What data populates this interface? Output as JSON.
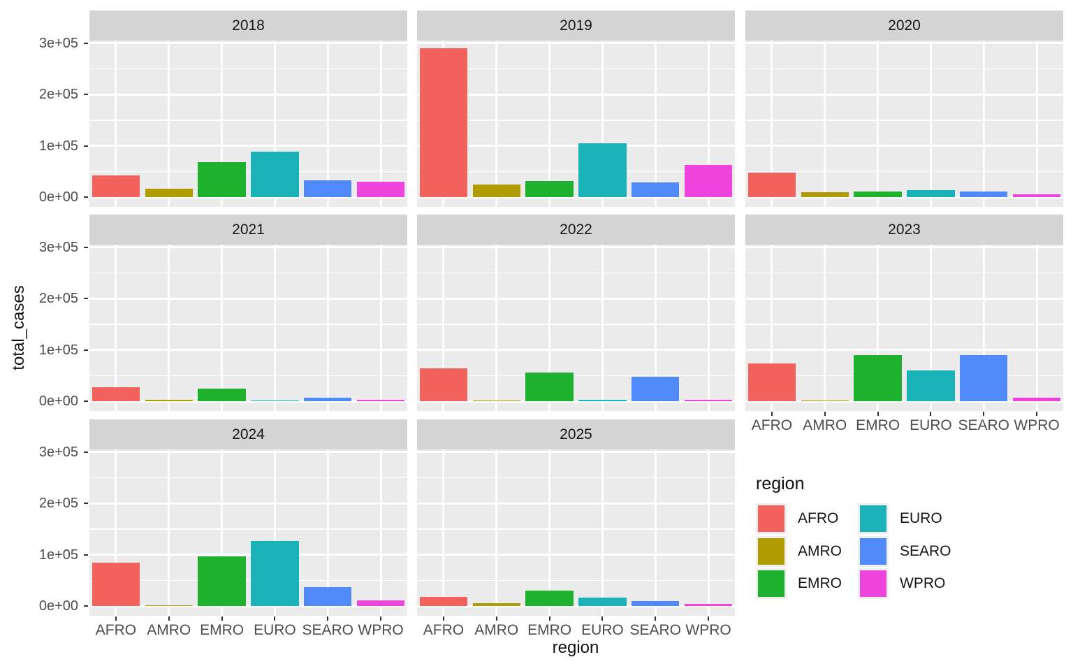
{
  "figure": {
    "y_axis_title": "total_cases",
    "x_axis_title": "region",
    "y_tick_labels": [
      "0e+00",
      "1e+05",
      "2e+05",
      "3e+05"
    ]
  },
  "legend": {
    "title": "region",
    "entries": [
      {
        "label": "AFRO",
        "color": "#f4625d"
      },
      {
        "label": "AMRO",
        "color": "#b09c00"
      },
      {
        "label": "EMRO",
        "color": "#1fb22e"
      },
      {
        "label": "EURO",
        "color": "#18b2b8"
      },
      {
        "label": "SEARO",
        "color": "#4f8af8"
      },
      {
        "label": "WPRO",
        "color": "#ee44dd"
      }
    ]
  },
  "chart_data": {
    "type": "bar",
    "title": "",
    "xlabel": "region",
    "ylabel": "total_cases",
    "facet_variable": "year",
    "categories": [
      "AFRO",
      "AMRO",
      "EMRO",
      "EURO",
      "SEARO",
      "WPRO"
    ],
    "colors": [
      "#f4625d",
      "#b09c00",
      "#1fb22e",
      "#18b2b8",
      "#4f8af8",
      "#ee44dd"
    ],
    "ylim": [
      0,
      305000
    ],
    "y_ticks": [
      0,
      100000,
      200000,
      300000
    ],
    "y_minor_ticks": [
      50000,
      150000,
      250000
    ],
    "grid": true,
    "legend_position": "bottom-right-facet-slot",
    "facets": [
      {
        "year": "2018",
        "values": [
          42000,
          17000,
          68000,
          89000,
          32000,
          30000
        ]
      },
      {
        "year": "2019",
        "values": [
          290000,
          24000,
          31000,
          105000,
          29000,
          63000
        ]
      },
      {
        "year": "2020",
        "values": [
          48000,
          10000,
          11000,
          13000,
          11000,
          6000
        ]
      },
      {
        "year": "2021",
        "values": [
          27000,
          3000,
          25000,
          1000,
          7000,
          2500
        ]
      },
      {
        "year": "2022",
        "values": [
          64000,
          700,
          56000,
          2500,
          48000,
          2500
        ]
      },
      {
        "year": "2023",
        "values": [
          73000,
          400,
          90000,
          60000,
          90000,
          7000
        ]
      },
      {
        "year": "2024",
        "values": [
          85000,
          1000,
          96000,
          126000,
          37000,
          11000
        ]
      },
      {
        "year": "2025",
        "values": [
          18000,
          5000,
          30000,
          17000,
          9000,
          4000
        ]
      }
    ]
  }
}
